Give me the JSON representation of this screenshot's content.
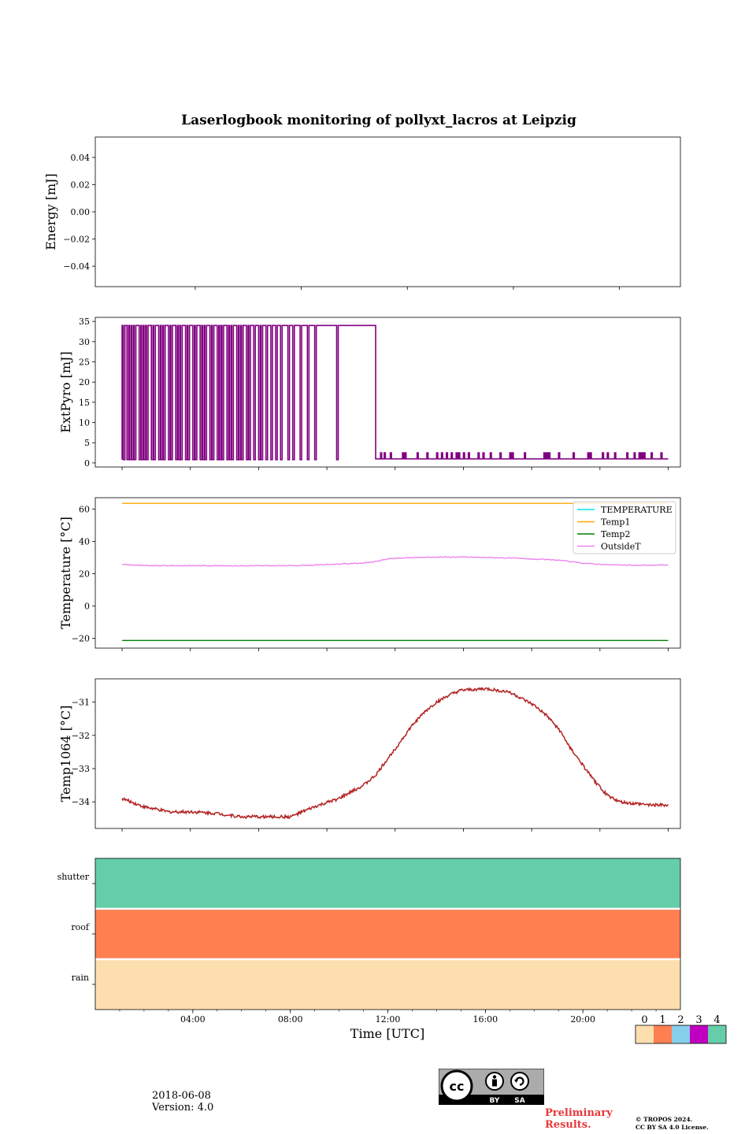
{
  "figure": {
    "title": "Laserlogbook monitoring of pollyxt_lacros at Leipzig",
    "date": "2018-06-08",
    "version": "Version: 4.0",
    "preliminary_line1": "Preliminary",
    "preliminary_line2": "Results.",
    "copyright_line1": "© TROPOS 2024.",
    "copyright_line2": "CC BY SA 4.0 License.",
    "license_badge": {
      "icon": "cc-by-sa-icon",
      "text_by": "BY",
      "text_sa": "SA"
    }
  },
  "chart_data": [
    {
      "type": "line",
      "name": "energy",
      "ylabel": "Energy [mJ]",
      "xlim": [
        0,
        24
      ],
      "ylim": [
        -0.055,
        0.055
      ],
      "yticks": [
        0.04,
        0.02,
        0.0,
        -0.02,
        -0.04
      ],
      "ytick_labels": [
        "0.04",
        "0.02",
        "0.00",
        "−0.02",
        "−0.04"
      ],
      "xticks_major_hours": [
        4.1,
        8.45,
        12.8,
        17.15,
        21.5
      ],
      "series": []
    },
    {
      "type": "line",
      "name": "extpyro",
      "ylabel": "ExtPyro [mJ]",
      "xlim": [
        0,
        24
      ],
      "ylim": [
        -1,
        36
      ],
      "yticks": [
        0,
        5,
        10,
        15,
        20,
        25,
        30,
        35
      ],
      "ytick_labels": [
        "0",
        "5",
        "10",
        "15",
        "20",
        "25",
        "30",
        "35"
      ],
      "xticks_major_hours": [
        1.1,
        3.9,
        6.7,
        9.5,
        12.3,
        15.1,
        17.9,
        20.7,
        23.5
      ],
      "series": [
        {
          "color": "#800080",
          "high": 34,
          "low": 0.8,
          "low_after": 1.0,
          "x_start": 1.1,
          "x_drop": 11.5,
          "x_end": 23.5,
          "drops": [
            1.15,
            1.3,
            1.4,
            1.5,
            1.6,
            1.8,
            1.9,
            2.0,
            2.1,
            2.3,
            2.4,
            2.6,
            2.7,
            2.8,
            3.0,
            3.1,
            3.3,
            3.4,
            3.5,
            3.7,
            3.8,
            4.0,
            4.1,
            4.3,
            4.4,
            4.5,
            4.7,
            4.8,
            5.0,
            5.1,
            5.2,
            5.4,
            5.5,
            5.6,
            5.8,
            5.9,
            6.0,
            6.2,
            6.3,
            6.5,
            6.7,
            6.8,
            7.0,
            7.2,
            7.4,
            7.6,
            7.9,
            8.1,
            8.4,
            8.7,
            9.0,
            9.9
          ],
          "spikes": [
            11.7,
            11.85,
            12.1,
            12.6,
            12.7,
            13.2,
            13.6,
            14.0,
            14.2,
            14.4,
            14.6,
            14.8,
            14.9,
            15.1,
            15.3,
            15.7,
            15.9,
            16.2,
            16.6,
            17.0,
            17.1,
            17.6,
            18.4,
            18.5,
            18.6,
            19.0,
            19.6,
            20.2,
            20.3,
            20.8,
            21.0,
            21.3,
            21.8,
            22.1,
            22.3,
            22.4,
            22.5,
            22.8,
            23.2
          ],
          "spike_value": 2.5
        }
      ]
    },
    {
      "type": "line",
      "name": "temperature",
      "ylabel": "Temperature [°C]",
      "xlim": [
        0,
        24
      ],
      "ylim": [
        -26,
        67
      ],
      "yticks": [
        60,
        40,
        20,
        0,
        -20
      ],
      "ytick_labels": [
        "60",
        "40",
        "20",
        "0",
        "−20"
      ],
      "xticks_major_hours": [
        1.1,
        3.9,
        6.7,
        9.5,
        12.3,
        15.1,
        17.9,
        20.7,
        23.5
      ],
      "legend": {
        "position": "upper-right"
      },
      "series": [
        {
          "name": "TEMPERATURE",
          "color": "#00e5ee",
          "x": [],
          "values": []
        },
        {
          "name": "Temp1",
          "color": "#ffa500",
          "x": [
            1.1,
            23.5
          ],
          "values": [
            63.5,
            63.5
          ]
        },
        {
          "name": "Temp2",
          "color": "#008000",
          "x": [
            1.1,
            23.5
          ],
          "values": [
            -21.3,
            -21.3
          ]
        },
        {
          "name": "OutsideT",
          "color": "#ee82ee",
          "x": [
            1.1,
            2.0,
            4.0,
            6.0,
            8.0,
            9.0,
            10.0,
            11.0,
            11.5,
            12.0,
            13.0,
            14.0,
            15.0,
            16.0,
            17.0,
            18.0,
            19.0,
            20.0,
            21.0,
            22.0,
            23.5
          ],
          "values": [
            25.8,
            25.0,
            25.0,
            24.9,
            25.0,
            25.4,
            26.0,
            26.6,
            27.5,
            29.2,
            30.0,
            30.3,
            30.3,
            30.1,
            29.7,
            29.0,
            28.4,
            26.5,
            25.6,
            25.2,
            25.4
          ]
        }
      ]
    },
    {
      "type": "line",
      "name": "temp1064",
      "ylabel": "Temp1064 [°C]",
      "xlim": [
        0,
        24
      ],
      "ylim": [
        -34.8,
        -30.3
      ],
      "yticks": [
        -31,
        -32,
        -33,
        -34
      ],
      "ytick_labels": [
        "−31",
        "−32",
        "−33",
        "−34"
      ],
      "xticks_major_hours": [
        1.1,
        3.9,
        6.7,
        9.5,
        12.3,
        15.1,
        17.9,
        20.7,
        23.5
      ],
      "series": [
        {
          "color": "#b22222",
          "x": [
            1.1,
            2.0,
            3.0,
            4.0,
            5.0,
            6.0,
            7.0,
            8.0,
            8.5,
            9.0,
            10.0,
            11.0,
            11.5,
            12.0,
            12.5,
            13.0,
            13.5,
            14.0,
            14.5,
            15.0,
            16.0,
            16.5,
            17.0,
            17.5,
            18.0,
            18.5,
            19.0,
            19.5,
            20.0,
            20.5,
            21.0,
            21.5,
            22.0,
            23.0,
            23.5
          ],
          "values": [
            -33.9,
            -34.15,
            -34.3,
            -34.3,
            -34.35,
            -34.45,
            -34.45,
            -34.45,
            -34.3,
            -34.15,
            -33.9,
            -33.5,
            -33.2,
            -32.7,
            -32.2,
            -31.7,
            -31.3,
            -31.0,
            -30.8,
            -30.65,
            -30.6,
            -30.65,
            -30.7,
            -30.9,
            -31.1,
            -31.4,
            -31.8,
            -32.4,
            -32.9,
            -33.4,
            -33.8,
            -34.0,
            -34.05,
            -34.1,
            -34.1
          ]
        }
      ]
    },
    {
      "type": "heatmap",
      "name": "status",
      "xlabel": "Time [UTC]",
      "xlim": [
        0,
        24
      ],
      "xtick_labels": [
        "04:00",
        "08:00",
        "12:00",
        "16:00",
        "20:00"
      ],
      "xtick_hours": [
        4,
        8,
        12,
        16,
        20
      ],
      "rows": [
        {
          "label": "shutter",
          "value": 4
        },
        {
          "label": "roof",
          "value": 1
        },
        {
          "label": "rain",
          "value": 0
        }
      ],
      "colorbar": {
        "ticks": [
          "0",
          "1",
          "2",
          "3",
          "4"
        ],
        "colors": [
          "#fddfaf",
          "#ff7f50",
          "#87ceeb",
          "#c000c0",
          "#66cdaa"
        ]
      }
    }
  ]
}
